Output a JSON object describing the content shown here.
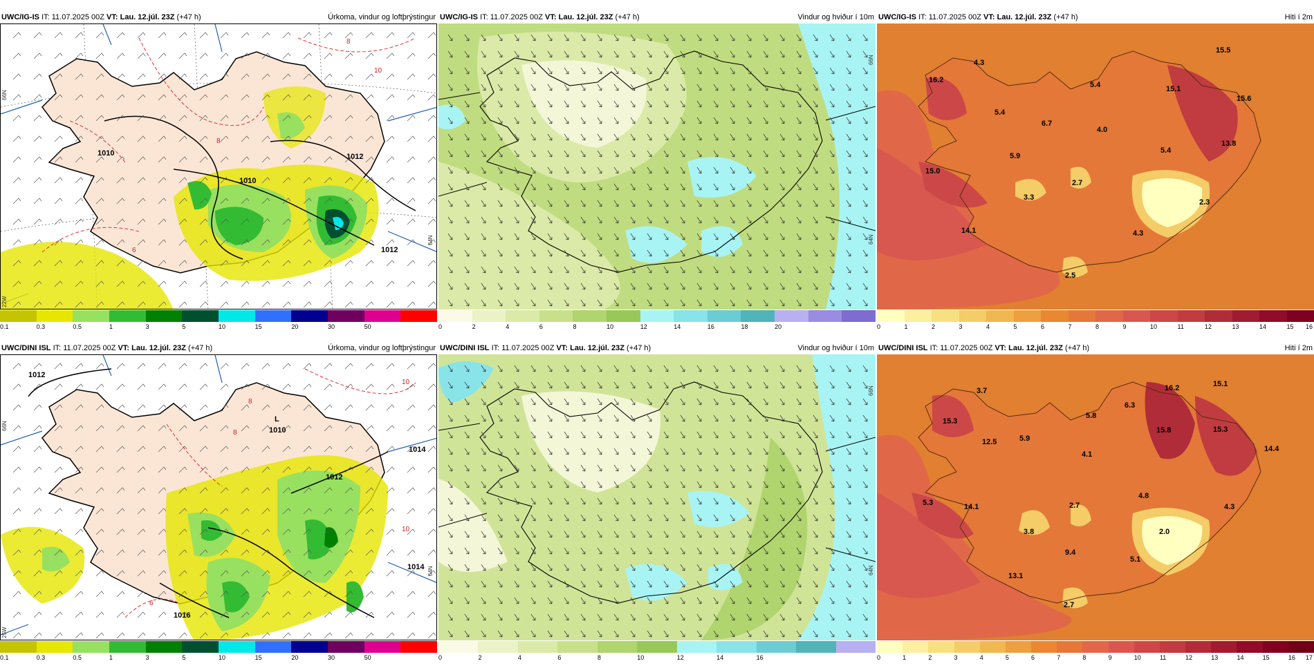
{
  "panels": [
    {
      "id": "precip-ig",
      "kind": "precip",
      "model": "UWC/IG-IS",
      "it_text": "IT: 11.07.2025 00Z",
      "vt_label": "VT:",
      "vt_value": "Lau. 12.júl. 23Z",
      "lead": "(+47 h)",
      "title": "Úrkoma, vindur og loftþrýstingur",
      "colorbar": {
        "colors": [
          "#c4c400",
          "#e6e600",
          "#98e060",
          "#33bb33",
          "#008000",
          "#005030",
          "#00e8e8",
          "#3070ff",
          "#000090",
          "#700060",
          "#e00090",
          "#ff0000"
        ],
        "ticks": [
          "0.1",
          "0.3",
          "0.5",
          "1",
          "3",
          "5",
          "10",
          "15",
          "20",
          "30",
          "50"
        ]
      },
      "labels": {
        "isobars": [
          "1010",
          "1010",
          "1012",
          "1012"
        ],
        "isotherms": [
          "8",
          "10",
          "6",
          "8"
        ]
      },
      "lat_labels": [
        "66N",
        "64N",
        "22W"
      ]
    },
    {
      "id": "wind-ig",
      "kind": "wind",
      "model": "UWC/IG-IS",
      "it_text": "IT: 11.07.2025 00Z",
      "vt_label": "VT:",
      "vt_value": "Lau. 12.júl. 23Z",
      "lead": "(+47 h)",
      "title": "Vindur og hviður í 10m",
      "colorbar": {
        "colors": [
          "#fafae6",
          "#ecf2c8",
          "#dbeaa8",
          "#c8e08a",
          "#b0d46e",
          "#98c858",
          "#a8f4f4",
          "#88e4e8",
          "#6cccd4",
          "#50b4b8",
          "#b8b0f0",
          "#9a8ce0",
          "#7e6cd0"
        ],
        "ticks": [
          "0",
          "2",
          "4",
          "6",
          "8",
          "10",
          "12",
          "14",
          "16",
          "18",
          "20"
        ]
      },
      "lat_labels": [
        "66N",
        "64N"
      ]
    },
    {
      "id": "temp-ig",
      "kind": "temp",
      "model": "UWC/IG-IS",
      "it_text": "IT: 11.07.2025 00Z",
      "vt_label": "VT:",
      "vt_value": "Lau. 12.júl. 23Z",
      "lead": "(+47 h)",
      "title": "Hiti í 2m",
      "colorbar": {
        "colors": [
          "#ffffc0",
          "#fcf0a0",
          "#f8e080",
          "#f4cc68",
          "#f0b850",
          "#eca040",
          "#e88830",
          "#e47838",
          "#e06848",
          "#d85850",
          "#cc4848",
          "#c03c40",
          "#b02c38",
          "#a01c30",
          "#900c28",
          "#800020"
        ],
        "ticks": [
          "0",
          "1",
          "2",
          "3",
          "4",
          "5",
          "6",
          "7",
          "8",
          "9",
          "10",
          "11",
          "12",
          "13",
          "14",
          "15",
          "16"
        ]
      },
      "values": [
        "15.5",
        "16.2",
        "4.3",
        "5.4",
        "15.1",
        "15.6",
        "5.4",
        "6.7",
        "4.0",
        "5.9",
        "5.4",
        "13.8",
        "15.0",
        "3.3",
        "2.7",
        "2.3",
        "14.1",
        "4.3",
        "2.5"
      ]
    },
    {
      "id": "precip-dini",
      "kind": "precip",
      "model": "UWC/DINI ISL",
      "it_text": "IT: 11.07.2025 00Z",
      "vt_label": "VT:",
      "vt_value": "Lau. 12.júl. 23Z",
      "lead": "(+47 h)",
      "title": "Úrkoma, vindur og loftþrýstingur",
      "colorbar": {
        "colors": [
          "#c4c400",
          "#e6e600",
          "#98e060",
          "#33bb33",
          "#008000",
          "#005030",
          "#00e8e8",
          "#3070ff",
          "#000090",
          "#700060",
          "#e00090",
          "#ff0000"
        ],
        "ticks": [
          "0.1",
          "0.3",
          "0.5",
          "1",
          "3",
          "5",
          "10",
          "15",
          "20",
          "30",
          "50"
        ]
      },
      "labels": {
        "isobars": [
          "1012",
          "1012",
          "1014",
          "1014",
          "1016"
        ],
        "isotherms": [
          "8",
          "8",
          "10",
          "10",
          "6"
        ]
      },
      "low": {
        "letter": "L",
        "value": "1010"
      },
      "lat_labels": [
        "66N",
        "64N",
        "25W"
      ]
    },
    {
      "id": "wind-dini",
      "kind": "wind",
      "model": "UWC/DINI ISL",
      "it_text": "IT: 11.07.2025 00Z",
      "vt_label": "VT:",
      "vt_value": "Lau. 12.júl. 23Z",
      "lead": "(+47 h)",
      "title": "Vindur og hviður í 10m",
      "colorbar": {
        "colors": [
          "#fafae6",
          "#ecf2c8",
          "#dbeaa8",
          "#c8e08a",
          "#b0d46e",
          "#98c858",
          "#a8f4f4",
          "#88e4e8",
          "#6cccd4",
          "#50b4b8",
          "#b8b0f0"
        ],
        "ticks": [
          "0",
          "2",
          "4",
          "6",
          "8",
          "10",
          "12",
          "14",
          "16"
        ]
      },
      "lat_labels": [
        "66N",
        "64N"
      ]
    },
    {
      "id": "temp-dini",
      "kind": "temp",
      "model": "UWC/DINI ISL",
      "it_text": "IT: 11.07.2025 00Z",
      "vt_label": "VT:",
      "vt_value": "Lau. 12.júl. 23Z",
      "lead": "(+47 h)",
      "title": "Hiti í 2m",
      "colorbar": {
        "colors": [
          "#ffffc0",
          "#fcf0a0",
          "#f8e080",
          "#f4cc68",
          "#f0b850",
          "#eca040",
          "#e88830",
          "#e47838",
          "#e06848",
          "#d85850",
          "#cc4848",
          "#c03c40",
          "#b02c38",
          "#a01c30",
          "#900c28",
          "#800020",
          "#700018"
        ],
        "ticks": [
          "0",
          "1",
          "2",
          "3",
          "4",
          "5",
          "6",
          "7",
          "8",
          "9",
          "10",
          "11",
          "12",
          "13",
          "14",
          "15",
          "16",
          "17"
        ]
      },
      "values": [
        "3.7",
        "16.2",
        "15.1",
        "15.3",
        "5.8",
        "6.3",
        "12.5",
        "5.9",
        "15.8",
        "15.3",
        "14.4",
        "4.1",
        "5.3",
        "14.1",
        "4.8",
        "4.3",
        "3.8",
        "2.7",
        "2.0",
        "9.4",
        "5.1",
        "13.1",
        "2.7"
      ]
    }
  ],
  "colors": {
    "land_precip": "#fbe6d6",
    "sea_precip": "#ffffff",
    "coast": "#000000",
    "isobar": "#000000",
    "isotherm": "#e03030",
    "grid": "#2060b0"
  }
}
